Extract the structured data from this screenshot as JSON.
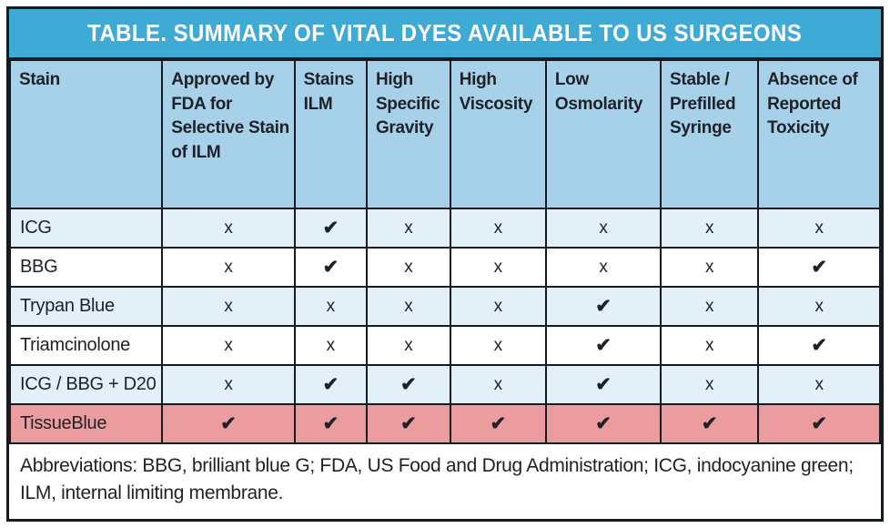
{
  "table": {
    "title": "TABLE. SUMMARY OF VITAL DYES AVAILABLE TO US SURGEONS",
    "columns": [
      "Stain",
      "Approved by FDA for Selective Stain of ILM",
      "Stains ILM",
      "High Specific Gravity",
      "High Viscosity",
      "Low Osmolarity",
      "Stable / Prefilled Syringe",
      "Absence of Reported Toxicity"
    ],
    "rows": [
      {
        "stain": "ICG",
        "values": [
          "x",
          "✔",
          "x",
          "x",
          "x",
          "x",
          "x"
        ],
        "highlight": false
      },
      {
        "stain": "BBG",
        "values": [
          "x",
          "✔",
          "x",
          "x",
          "x",
          "x",
          "✔"
        ],
        "highlight": false
      },
      {
        "stain": "Trypan Blue",
        "values": [
          "x",
          "x",
          "x",
          "x",
          "✔",
          "x",
          "x"
        ],
        "highlight": false
      },
      {
        "stain": "Triamcinolone",
        "values": [
          "x",
          "x",
          "x",
          "x",
          "✔",
          "x",
          "✔"
        ],
        "highlight": false
      },
      {
        "stain": "ICG / BBG + D20",
        "values": [
          "x",
          "✔",
          "✔",
          "x",
          "✔",
          "x",
          "x"
        ],
        "highlight": false
      },
      {
        "stain": "TissueBlue",
        "values": [
          "✔",
          "✔",
          "✔",
          "✔",
          "✔",
          "✔",
          "✔"
        ],
        "highlight": true
      }
    ],
    "footnote": "Abbreviations: BBG, brilliant blue G; FDA, US Food and Drug Administration; ICG, indocyanine green; ILM, internal limiting membrane."
  },
  "symbols": {
    "check": "✔",
    "cross": "x"
  },
  "colors": {
    "title-bg": "#3FAAD3",
    "header-bg": "#A6D1E9",
    "row-alt-bg": "#E3F0F8",
    "row-bg": "#FFFFFF",
    "highlight-bg": "#EA9C9F",
    "border": "#161A21",
    "title-text": "#FFFFFF",
    "text": "#1E2127"
  },
  "chart_data": {
    "type": "table",
    "title": "TABLE. SUMMARY OF VITAL DYES AVAILABLE TO US SURGEONS",
    "columns": [
      "Stain",
      "Approved by FDA for Selective Stain of ILM",
      "Stains ILM",
      "High Specific Gravity",
      "High Viscosity",
      "Low Osmolarity",
      "Stable / Prefilled Syringe",
      "Absence of Reported Toxicity"
    ],
    "rows": [
      [
        "ICG",
        "x",
        "✔",
        "x",
        "x",
        "x",
        "x",
        "x"
      ],
      [
        "BBG",
        "x",
        "✔",
        "x",
        "x",
        "x",
        "x",
        "✔"
      ],
      [
        "Trypan Blue",
        "x",
        "x",
        "x",
        "x",
        "✔",
        "x",
        "x"
      ],
      [
        "Triamcinolone",
        "x",
        "x",
        "x",
        "x",
        "✔",
        "x",
        "✔"
      ],
      [
        "ICG / BBG + D20",
        "x",
        "✔",
        "✔",
        "x",
        "✔",
        "x",
        "x"
      ],
      [
        "TissueBlue",
        "✔",
        "✔",
        "✔",
        "✔",
        "✔",
        "✔",
        "✔"
      ]
    ],
    "footnote": "Abbreviations: BBG, brilliant blue G; FDA, US Food and Drug Administration; ICG, indocyanine green; ILM, internal limiting membrane.",
    "layout_hints": {
      "highlighted_row": "TissueBlue",
      "alternating_row_shading": true,
      "check_means_yes": true
    }
  }
}
